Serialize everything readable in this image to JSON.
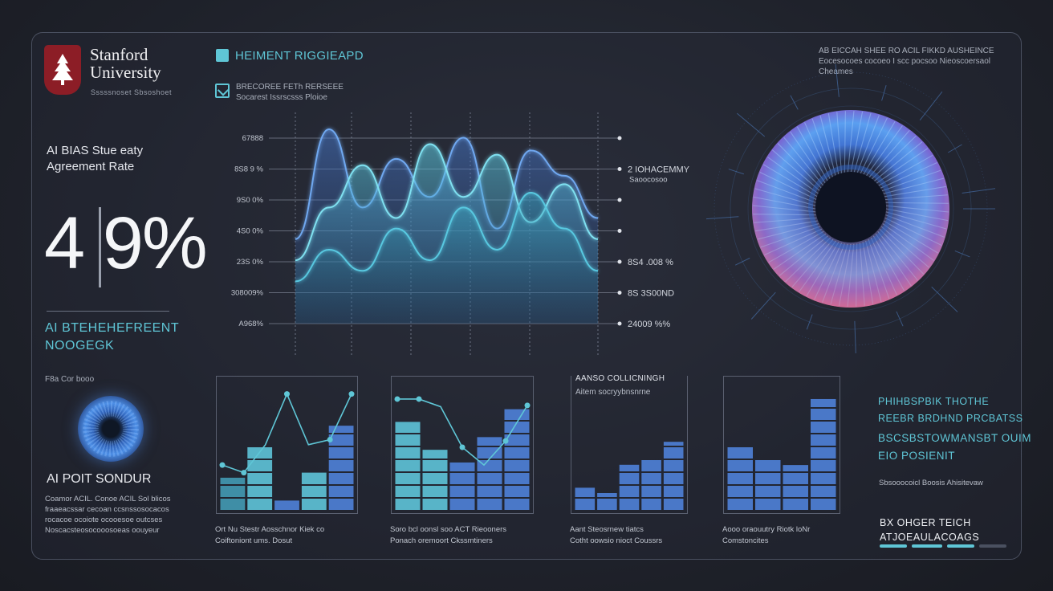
{
  "colors": {
    "accent_cyan": "#5fc6d6",
    "accent_blue": "#4a78c8",
    "stanford_red": "#8c1d26"
  },
  "logo": {
    "icon": "tree-icon",
    "title_line1": "Stanford",
    "title_line2": "University",
    "subtitle": "Sssssnoset Sbsoshoet"
  },
  "left": {
    "label_line1": "AI BIAS Stue eaty",
    "label_line2": "Agreement Rate",
    "big_stat": "4 9%",
    "cyan_line1": "AI BTEHEHEFREENT",
    "cyan_line2": "NOOGEGK",
    "small_gray": "F8a Cor booo",
    "heading": "AI POIT SONDUR",
    "para": [
      "Coamor ACIL. Conoe ACIL Sol blicos",
      "fraaeacssar cecoan ccsnssosocacos",
      "rocacoe ocoiote ocooesoe outcses",
      "Noscacsteosocooosoeas oouyeur"
    ]
  },
  "header": {
    "title": "HEIMENT RIGGIEAPD",
    "sub_line1": "BRECOREE FETh RERSEEE",
    "sub_line2": "Socarest Issrscsss Ploioe"
  },
  "top_right": {
    "line1": "AB EICCAH SHEE RO ACIL FIKKD AUSHEINCE",
    "line2": "Eocesocoes cocoeo I scc pocsoo Nieoscoersaol Cheames"
  },
  "chart_data": {
    "type": "line",
    "title": "",
    "y_tick_labels": [
      "67888",
      "8S8 9 %",
      "9S0 0%",
      "4S0 0%",
      "23S 0%",
      "308009%",
      "A968%"
    ],
    "right_labels": [
      "",
      "2 IOHACEMMY",
      "",
      "",
      "8S4 .008 %",
      "8S 3S00ND",
      "24009 %%"
    ],
    "right_sub": "Saoocosoo",
    "series": [
      {
        "values": [
          40,
          92,
          55,
          78,
          60,
          88,
          45,
          82,
          70,
          50
        ]
      },
      {
        "values": [
          30,
          55,
          75,
          50,
          85,
          60,
          80,
          48,
          66,
          40
        ]
      },
      {
        "values": [
          20,
          35,
          25,
          45,
          30,
          55,
          35,
          62,
          45,
          25
        ]
      }
    ]
  },
  "minis": [
    {
      "caption_line1": "Ort Nu Stestr Aosschnor Kiek co",
      "caption_line2": "Coiftoniont ums. Dosut",
      "bars": [
        0.26,
        0.5,
        0.08,
        0.3,
        0.67
      ],
      "line": [
        0.36,
        0.3,
        0.52,
        0.92,
        0.52,
        0.56,
        0.92
      ],
      "style": "cyan-mix"
    },
    {
      "caption_line1": "Soro bcl oonsl soo ACT Rieooners",
      "caption_line2": "Ponach oremoort Ckssmtiners",
      "bars": [
        0.7,
        0.48,
        0.38,
        0.58,
        0.8
      ],
      "line": [
        0.88,
        0.88,
        0.82,
        0.5,
        0.36,
        0.55,
        0.83
      ],
      "style": "cyan-blue"
    },
    {
      "title": "AANSO COLLICNINGH",
      "subtitle": "Aitem socryybnsnrne",
      "caption_line1": "Aant Steosrnew tiatcs",
      "caption_line2": "Cotht oowsio nioct Coussrs",
      "bars": [
        0.26,
        0.2,
        0.52,
        0.6,
        0.78
      ],
      "style": "blue"
    },
    {
      "caption_line1": "Aooo oraouutry Riotk loNr",
      "caption_line2": "Comstoncites",
      "bars": [
        0.5,
        0.42,
        0.36,
        0.88
      ],
      "style": "blue"
    }
  ],
  "right_col": {
    "cyan_lines": [
      "PHIHBSPBIK THOTHE",
      "REEBR BRDHND PRCBATSS"
    ],
    "cyan_lines2": [
      "BSCSBSTOWMANSBT OUIM",
      "EIO POSIENIT"
    ],
    "small": "Sbsooocoicl Boosis Ahisitevaw",
    "white_line1": "BX OHGER TEICH",
    "white_line2": "ATJOEAULACOAGS"
  }
}
